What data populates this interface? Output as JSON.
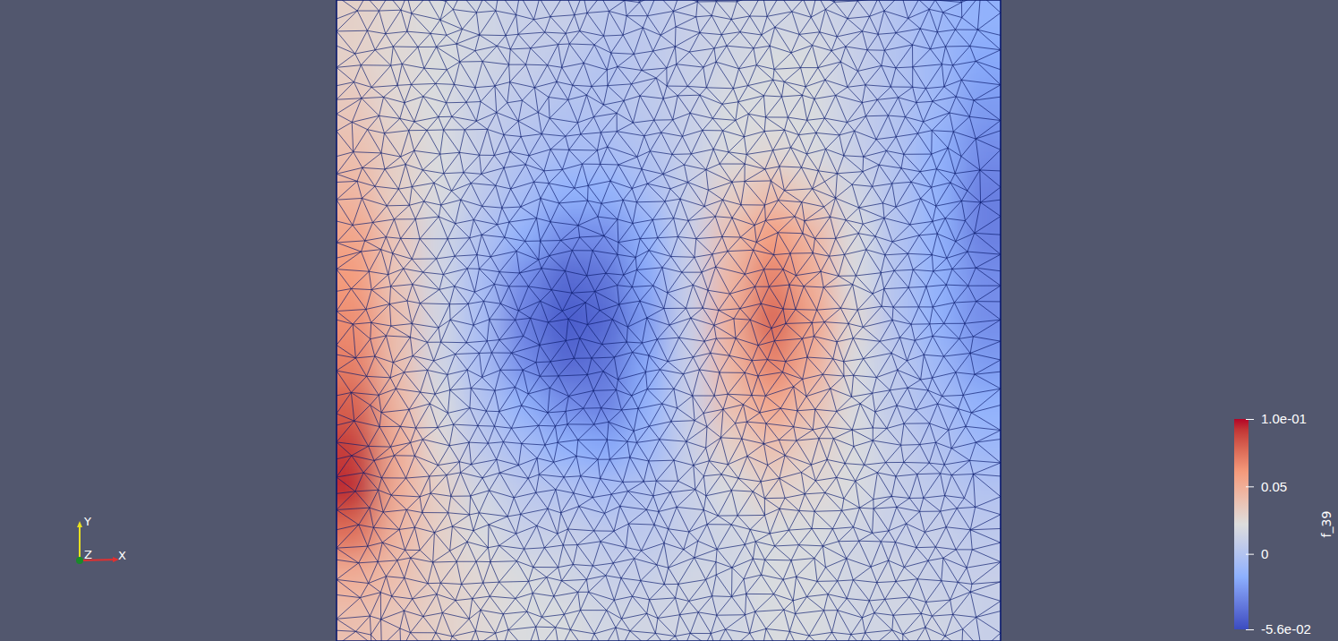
{
  "chart_data": {
    "type": "heatmap",
    "cells": [
      [
        0.03,
        0.025,
        0.02,
        0.015,
        0.01,
        0.01,
        0.005,
        0.005,
        0.01,
        0.015,
        0.015,
        0.015,
        0.01,
        0.0,
        -0.01,
        -0.015
      ],
      [
        0.03,
        0.025,
        0.02,
        0.015,
        0.01,
        0.005,
        0.0,
        0.005,
        0.01,
        0.015,
        0.02,
        0.02,
        0.01,
        0.0,
        -0.01,
        -0.02
      ],
      [
        0.035,
        0.025,
        0.02,
        0.01,
        0.005,
        0.0,
        0.0,
        0.005,
        0.01,
        0.02,
        0.02,
        0.02,
        0.01,
        0.0,
        -0.01,
        -0.025
      ],
      [
        0.04,
        0.03,
        0.02,
        0.01,
        0.0,
        -0.005,
        -0.005,
        0.0,
        0.01,
        0.02,
        0.025,
        0.02,
        0.01,
        0.0,
        -0.015,
        -0.03
      ],
      [
        0.045,
        0.03,
        0.02,
        0.005,
        -0.005,
        -0.015,
        -0.015,
        -0.005,
        0.01,
        0.03,
        0.04,
        0.03,
        0.015,
        0.0,
        -0.015,
        -0.035
      ],
      [
        0.055,
        0.035,
        0.015,
        0.0,
        -0.015,
        -0.03,
        -0.03,
        -0.015,
        0.01,
        0.04,
        0.06,
        0.045,
        0.02,
        0.0,
        -0.015,
        -0.035
      ],
      [
        0.06,
        0.035,
        0.015,
        -0.005,
        -0.03,
        -0.045,
        -0.04,
        -0.02,
        0.01,
        0.045,
        0.07,
        0.05,
        0.02,
        0.0,
        -0.015,
        -0.03
      ],
      [
        0.065,
        0.04,
        0.015,
        -0.005,
        -0.035,
        -0.05,
        -0.045,
        -0.025,
        0.01,
        0.05,
        0.08,
        0.055,
        0.025,
        0.0,
        -0.015,
        -0.03
      ],
      [
        0.07,
        0.04,
        0.015,
        -0.005,
        -0.03,
        -0.045,
        -0.04,
        -0.02,
        0.01,
        0.045,
        0.07,
        0.05,
        0.02,
        0.005,
        -0.01,
        -0.025
      ],
      [
        0.08,
        0.045,
        0.02,
        0.0,
        -0.015,
        -0.03,
        -0.035,
        -0.015,
        0.01,
        0.04,
        0.055,
        0.04,
        0.02,
        0.005,
        -0.005,
        -0.015
      ],
      [
        0.09,
        0.05,
        0.025,
        0.005,
        -0.005,
        -0.015,
        -0.02,
        -0.01,
        0.01,
        0.03,
        0.04,
        0.03,
        0.02,
        0.01,
        0.0,
        -0.01
      ],
      [
        0.095,
        0.05,
        0.03,
        0.015,
        0.005,
        0.0,
        -0.005,
        0.0,
        0.01,
        0.02,
        0.03,
        0.025,
        0.02,
        0.01,
        0.005,
        0.0
      ],
      [
        0.075,
        0.045,
        0.03,
        0.02,
        0.01,
        0.01,
        0.005,
        0.005,
        0.01,
        0.015,
        0.02,
        0.02,
        0.015,
        0.01,
        0.01,
        0.005
      ],
      [
        0.05,
        0.04,
        0.03,
        0.025,
        0.02,
        0.015,
        0.01,
        0.01,
        0.015,
        0.015,
        0.02,
        0.02,
        0.015,
        0.015,
        0.01,
        0.01
      ],
      [
        0.04,
        0.035,
        0.03,
        0.025,
        0.02,
        0.02,
        0.015,
        0.015,
        0.015,
        0.015,
        0.02,
        0.02,
        0.015,
        0.015,
        0.015,
        0.01
      ]
    ],
    "colorbar": {
      "title": "f_39",
      "range": [
        -0.056,
        0.1
      ],
      "ticks": [
        {
          "value": 0.1,
          "label": "1.0e-01"
        },
        0.05,
        0,
        {
          "value": -0.056,
          "label": "-5.6e-02"
        }
      ]
    },
    "axes_triad": {
      "labels": [
        "X",
        "Y",
        "Z"
      ]
    }
  }
}
